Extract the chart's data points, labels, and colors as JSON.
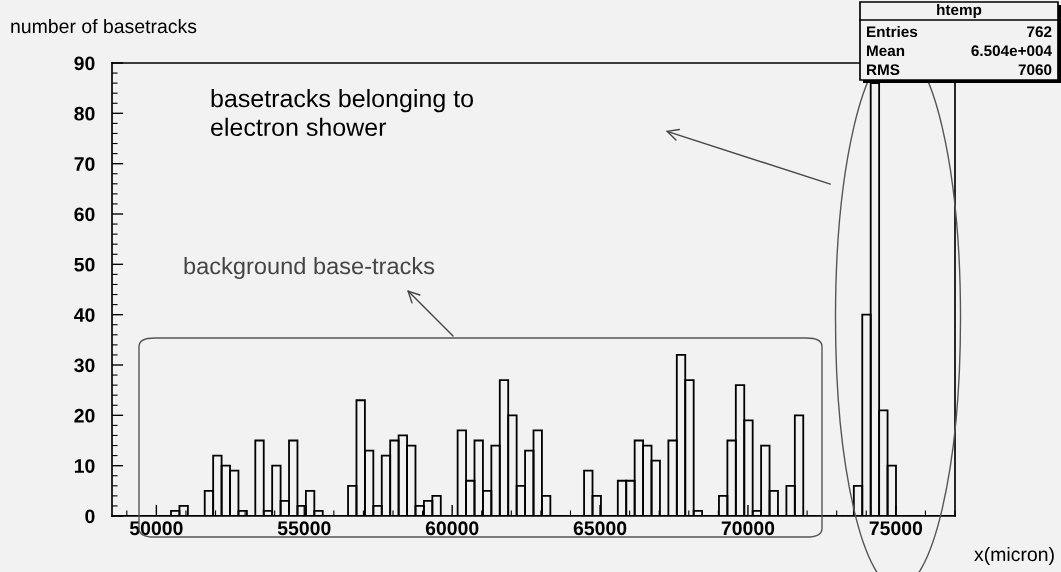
{
  "chart_data": {
    "type": "histogram",
    "xlabel": "x(micron)",
    "ylabel": "number of basetracks",
    "annotations": [
      "basetracks belonging to\nelectron shower",
      "background base-tracks",
      "htemp",
      "Entries",
      "762",
      "Mean",
      "6.504e+004",
      "RMS",
      "7060"
    ],
    "bins": [
      48500,
      48785,
      49070,
      49355,
      49640,
      49925,
      50210,
      50495,
      50780,
      51065,
      51350,
      51635,
      51920,
      52205,
      52490,
      52775,
      53060,
      53345,
      53630,
      53915,
      54200,
      54485,
      54770,
      55055,
      55340,
      55625,
      55910,
      56195,
      56480,
      56765,
      57050,
      57335,
      57620,
      57905,
      58190,
      58475,
      58760,
      59045,
      59330,
      59615,
      59900,
      60185,
      60470,
      60755,
      61040,
      61325,
      61610,
      61895,
      62180,
      62465,
      62750,
      63035,
      63320,
      63605,
      63890,
      64175,
      64460,
      64745,
      65030,
      65315,
      65600,
      65885,
      66170,
      66455,
      66740,
      67025,
      67310,
      67595,
      67880,
      68165,
      68450,
      68735,
      69020,
      69305,
      69590,
      69875,
      70160,
      70445,
      70730,
      71015,
      71300,
      71585,
      71870,
      72155,
      72440,
      72725,
      73010,
      73295,
      73580,
      73865,
      74150,
      74435,
      74720,
      75005,
      75290,
      75575,
      75860,
      76145,
      76430,
      76715,
      77000
    ],
    "values": [
      0,
      0,
      0,
      0,
      0,
      0,
      0,
      1,
      2,
      0,
      0,
      5,
      12,
      10,
      9,
      1,
      0,
      15,
      1,
      10,
      3,
      15,
      2,
      5,
      1,
      0,
      0,
      0,
      6,
      23,
      13,
      2,
      12,
      15,
      16,
      14,
      2,
      3,
      4,
      0,
      0,
      17,
      7,
      15,
      5,
      14,
      27,
      20,
      6,
      13,
      17,
      4,
      0,
      0,
      0,
      0,
      9,
      4,
      0,
      0,
      7,
      7,
      15,
      14,
      11,
      0,
      15,
      32,
      27,
      1,
      0,
      0,
      4,
      15,
      26,
      19,
      1,
      14,
      5,
      0,
      6,
      20,
      0,
      0,
      0,
      0,
      0,
      0,
      6,
      40,
      86,
      21,
      10,
      0,
      0,
      0,
      0,
      0,
      0,
      0
    ],
    "color": "#000000",
    "xlim": [
      48500,
      77000
    ],
    "xticks": [
      50000,
      55000,
      60000,
      65000,
      70000,
      75000
    ],
    "ylim": [
      0,
      90
    ],
    "yticks": [
      0,
      10,
      20,
      30,
      40,
      50,
      60,
      70,
      80,
      90
    ]
  }
}
